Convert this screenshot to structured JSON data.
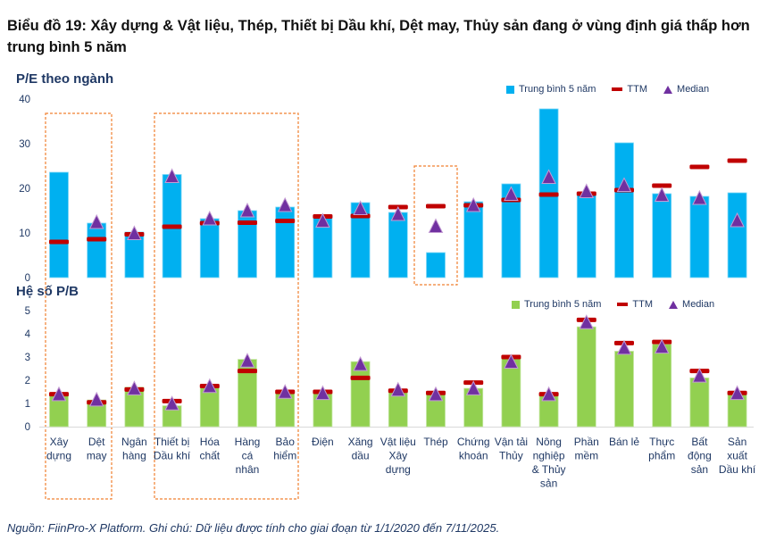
{
  "title": "Biểu đồ 19: Xây dựng & Vật liệu, Thép, Thiết bị Dầu khí, Dệt may, Thủy sản đang ở vùng định giá thấp hơn trung bình 5 năm",
  "footer": "Nguồn: FiinPro-X Platform. Ghi chú: Dữ liệu được tính cho giai đoạn từ 1/1/2020 đến 7/11/2025.",
  "colors": {
    "pe_bar": "#00b0f0",
    "pb_bar": "#92d050",
    "ttm": "#c00000",
    "median": "#7030a0",
    "highlight_box": "#f08030",
    "text": "#1f3864"
  },
  "legend": {
    "avg": "Trung bình 5 năm",
    "ttm": "TTM",
    "median": "Median"
  },
  "chart_data": [
    {
      "type": "bar",
      "title": "P/E theo ngành",
      "ylim": [
        0,
        40
      ],
      "yticks": [
        0,
        10,
        20,
        30,
        40
      ],
      "grid": false,
      "legend_position": "top-right",
      "categories": [
        [
          "Xây",
          "dựng"
        ],
        [
          "Dệt",
          "may"
        ],
        [
          "Ngân",
          "hàng"
        ],
        [
          "Thiết bị",
          "Dầu khí"
        ],
        [
          "Hóa",
          "chất"
        ],
        [
          "Hàng",
          "cá",
          "nhân"
        ],
        [
          "Bảo",
          "hiểm"
        ],
        [
          "Điện"
        ],
        [
          "Xăng",
          "dầu"
        ],
        [
          "Vật liệu",
          "Xây",
          "dựng"
        ],
        [
          "Thép"
        ],
        [
          "Chứng",
          "khoán"
        ],
        [
          "Vận tải",
          "Thủy"
        ],
        [
          "Nông",
          "nghiệp",
          "& Thủy",
          "sản"
        ],
        [
          "Phần",
          "mềm"
        ],
        [
          "Bán lẻ"
        ],
        [
          "Thực",
          "phẩm"
        ],
        [
          "Bất",
          "động",
          "sản"
        ],
        [
          "Sản",
          "xuất",
          "Dầu khí"
        ]
      ],
      "series": [
        {
          "name": "Trung bình 5 năm",
          "kind": "bar",
          "values": [
            23.6,
            12.2,
            10.2,
            23.1,
            13.2,
            15.0,
            15.8,
            14.0,
            16.8,
            14.6,
            5.6,
            17.0,
            21.0,
            37.8,
            19.0,
            30.2,
            18.8,
            18.2,
            19.0
          ]
        },
        {
          "name": "TTM",
          "kind": "dash",
          "values": [
            8.0,
            8.6,
            9.7,
            11.4,
            12.2,
            12.3,
            12.7,
            13.7,
            13.8,
            15.8,
            16.0,
            16.2,
            17.4,
            18.6,
            18.8,
            19.6,
            20.6,
            24.8,
            26.2
          ]
        },
        {
          "name": "Median",
          "kind": "triangle",
          "values": [
            null,
            12.2,
            9.7,
            22.5,
            13.0,
            14.8,
            16.0,
            12.5,
            15.3,
            14.0,
            11.3,
            16.0,
            18.5,
            22.3,
            19.1,
            20.5,
            18.3,
            17.6,
            12.6
          ]
        }
      ]
    },
    {
      "type": "bar",
      "title": "Hệ số P/B",
      "ylim": [
        0,
        5
      ],
      "yticks": [
        0,
        1,
        2,
        3,
        4,
        5
      ],
      "grid": false,
      "legend_position": "top-right",
      "series": [
        {
          "name": "Trung bình 5 năm",
          "kind": "bar",
          "values": [
            1.42,
            1.15,
            1.7,
            0.9,
            1.7,
            2.9,
            1.55,
            1.42,
            2.8,
            1.55,
            1.4,
            1.65,
            2.95,
            1.4,
            4.3,
            3.25,
            3.55,
            2.1,
            1.5
          ]
        },
        {
          "name": "TTM",
          "kind": "dash",
          "values": [
            1.4,
            1.05,
            1.6,
            1.1,
            1.75,
            2.4,
            1.5,
            1.5,
            2.1,
            1.55,
            1.45,
            1.9,
            3.0,
            1.4,
            4.6,
            3.6,
            3.65,
            2.4,
            1.45
          ]
        },
        {
          "name": "Median",
          "kind": "triangle",
          "values": [
            1.35,
            1.12,
            1.6,
            0.95,
            1.7,
            2.8,
            1.45,
            1.4,
            2.65,
            1.55,
            1.35,
            1.6,
            2.75,
            1.35,
            4.45,
            3.35,
            3.4,
            2.15,
            1.4
          ]
        }
      ]
    }
  ],
  "highlight_groups": [
    [
      0,
      1
    ],
    [
      3,
      6
    ],
    [
      10,
      10
    ]
  ]
}
